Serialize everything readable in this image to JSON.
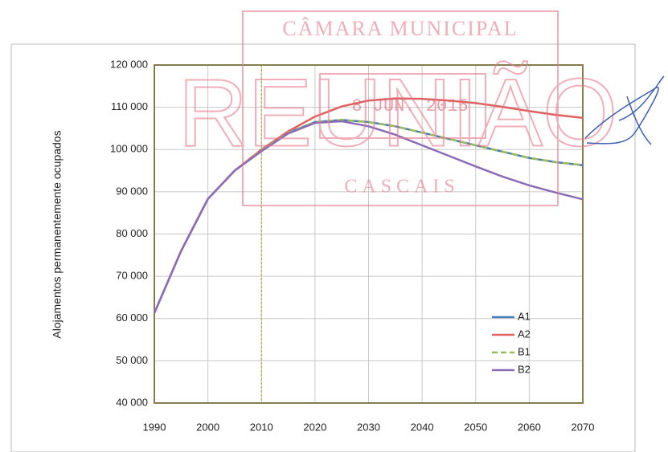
{
  "chart_data": {
    "type": "line",
    "ylabel": "Alojamentos permanentemente ocupados",
    "x": [
      1990,
      1995,
      2000,
      2005,
      2010,
      2015,
      2020,
      2025,
      2030,
      2035,
      2040,
      2045,
      2050,
      2055,
      2060,
      2065,
      2070
    ],
    "series": [
      {
        "name": "A1",
        "color": "#4a7ebb",
        "dashed": false,
        "values": [
          61300,
          76000,
          88300,
          95000,
          99800,
          104000,
          106500,
          107000,
          106500,
          105500,
          104000,
          102500,
          101000,
          99500,
          98000,
          97000,
          96300
        ]
      },
      {
        "name": "A2",
        "color": "#e06060",
        "dashed": false,
        "values": [
          61300,
          76000,
          88300,
          95000,
          100000,
          104300,
          107800,
          110200,
          111600,
          112100,
          112000,
          111600,
          111000,
          110100,
          109100,
          108200,
          107500
        ]
      },
      {
        "name": "B1",
        "color": "#9bbb59",
        "dashed": true,
        "values": [
          61300,
          76000,
          88300,
          95000,
          99800,
          104000,
          106500,
          107000,
          106500,
          105500,
          104000,
          102500,
          101000,
          99500,
          98000,
          97000,
          96300
        ]
      },
      {
        "name": "B2",
        "color": "#8c6bb8",
        "dashed": false,
        "values": [
          61300,
          76000,
          88300,
          95000,
          99600,
          103800,
          106300,
          106700,
          105500,
          103500,
          101000,
          98500,
          96000,
          93600,
          91500,
          89800,
          88200
        ]
      }
    ],
    "xlim": [
      1990,
      2070
    ],
    "xticks": [
      1990,
      2000,
      2010,
      2020,
      2030,
      2040,
      2050,
      2060,
      2070
    ],
    "ylim": [
      40000,
      120000
    ],
    "yticks": [
      {
        "value": 40000,
        "label": "40 000"
      },
      {
        "value": 50000,
        "label": "50 000"
      },
      {
        "value": 60000,
        "label": "60 000"
      },
      {
        "value": 70000,
        "label": "70 000"
      },
      {
        "value": 80000,
        "label": "80 000"
      },
      {
        "value": 90000,
        "label": "90 000"
      },
      {
        "value": 100000,
        "label": "100 000"
      },
      {
        "value": 110000,
        "label": "110 000"
      },
      {
        "value": 120000,
        "label": "120 000"
      }
    ],
    "vline": 2010,
    "grid": true,
    "legend": "lower right"
  },
  "stamp": {
    "header": "CÂMARA MUNICIPAL",
    "word": "REUNIÃO",
    "date": "8 JUN. 2015",
    "footer": "CASCAIS"
  }
}
